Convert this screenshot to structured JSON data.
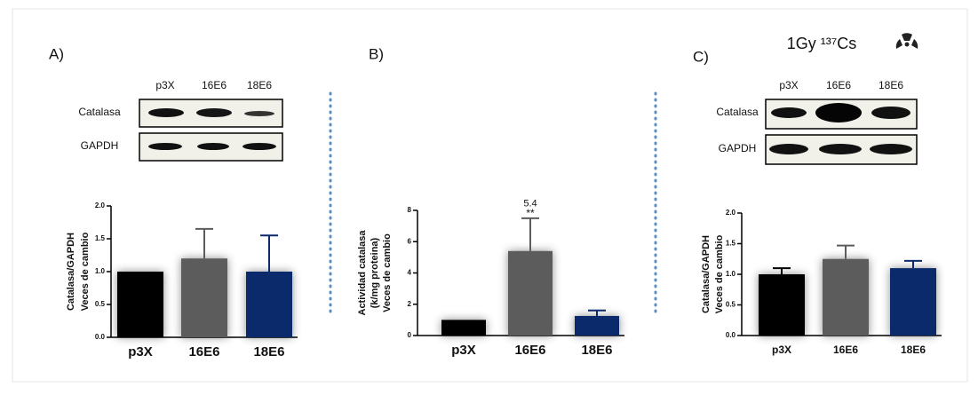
{
  "chart_data": [
    {
      "type": "bar",
      "panel": "A)",
      "blot": {
        "lanes": [
          "p3X",
          "16E6",
          "18E6"
        ],
        "rows": [
          "Catalasa",
          "GAPDH"
        ]
      },
      "ylabel": [
        "Catalasa/GAPDH",
        "Veces de cambio"
      ],
      "categories": [
        "p3X",
        "16E6",
        "18E6"
      ],
      "values": [
        1.0,
        1.2,
        1.0
      ],
      "errors": [
        0,
        0.45,
        0.55
      ],
      "colors": [
        "#000000",
        "#5c5c5c",
        "#0b2a6b"
      ],
      "ylim": [
        0,
        2.0
      ],
      "yticks": [
        {
          "value": 0,
          "label": "0.0"
        },
        {
          "value": 0.5,
          "label": "0.5"
        },
        {
          "value": 1.0,
          "label": "1.0"
        },
        {
          "value": 1.5,
          "label": "1.5"
        },
        {
          "value": 2.0,
          "label": "2.0"
        }
      ]
    },
    {
      "type": "bar",
      "panel": "B)",
      "ylabel": [
        "Actividad catalasa",
        "(k/mg proteina)",
        "Veces de cambio"
      ],
      "categories": [
        "p3X",
        "16E6",
        "18E6"
      ],
      "values": [
        1.0,
        5.4,
        1.25
      ],
      "errors": [
        0,
        2.1,
        0.35
      ],
      "colors": [
        "#000000",
        "#5c5c5c",
        "#0b2a6b"
      ],
      "significance": "**",
      "ylim": [
        0,
        8
      ],
      "yticks": [
        0,
        2,
        4,
        6,
        8
      ]
    },
    {
      "type": "bar",
      "panel": "C)",
      "header": "1Gy ¹³⁷Cs",
      "blot": {
        "lanes": [
          "p3X",
          "16E6",
          "18E6"
        ],
        "rows": [
          "Catalasa",
          "GAPDH"
        ]
      },
      "ylabel": [
        "Catalasa/GAPDH",
        "Veces de cambio"
      ],
      "categories": [
        "p3X",
        "16E6",
        "18E6"
      ],
      "values": [
        1.0,
        1.25,
        1.1
      ],
      "errors": [
        0.1,
        0.22,
        0.12
      ],
      "colors": [
        "#000000",
        "#5c5c5c",
        "#0b2a6b"
      ],
      "ylim": [
        0,
        2.0
      ],
      "yticks": [
        {
          "value": 0,
          "label": "0.0"
        },
        {
          "value": 0.5,
          "label": "0.5"
        },
        {
          "value": 1.0,
          "label": "1.0"
        },
        {
          "value": 1.5,
          "label": "1.5"
        },
        {
          "value": 2.0,
          "label": "2.0"
        }
      ]
    }
  ]
}
